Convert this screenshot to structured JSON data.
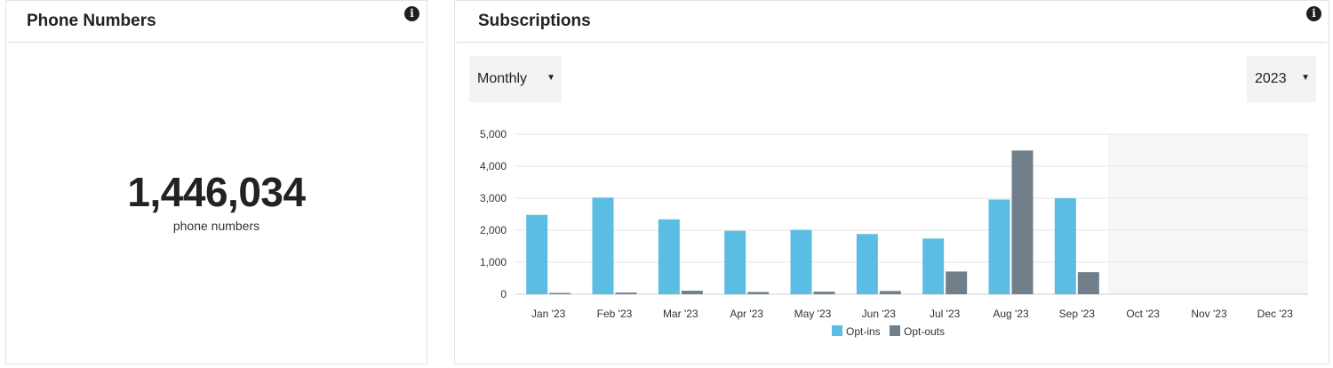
{
  "phone_card": {
    "title": "Phone Numbers",
    "count": "1,446,034",
    "caption": "phone numbers"
  },
  "subs_card": {
    "title": "Subscriptions",
    "period_select": {
      "value": "Monthly"
    },
    "year_select": {
      "value": "2023"
    }
  },
  "icons": {
    "info": "info-icon",
    "dropdown": "caret-down-icon"
  },
  "colors": {
    "opt_ins": "#5bbde3",
    "opt_outs": "#707f8a",
    "future_band": "#f6f6f6"
  },
  "chart_data": {
    "type": "bar",
    "categories": [
      "Jan '23",
      "Feb '23",
      "Mar '23",
      "Apr '23",
      "May '23",
      "Jun '23",
      "Jul '23",
      "Aug '23",
      "Sep '23",
      "Oct '23",
      "Nov '23",
      "Dec '23"
    ],
    "series": [
      {
        "name": "Opt-ins",
        "values": [
          2480,
          3020,
          2340,
          1980,
          2010,
          1880,
          1740,
          2960,
          3000,
          0,
          0,
          0
        ]
      },
      {
        "name": "Opt-outs",
        "values": [
          40,
          50,
          110,
          70,
          80,
          100,
          710,
          4490,
          690,
          0,
          0,
          0
        ]
      }
    ],
    "yticks": [
      "0",
      "1,000",
      "2,000",
      "3,000",
      "4,000",
      "5,000"
    ],
    "ylim": [
      0,
      5000
    ],
    "grid": true,
    "legend": "bottom-center",
    "shaded_from_category": "Oct '23"
  }
}
